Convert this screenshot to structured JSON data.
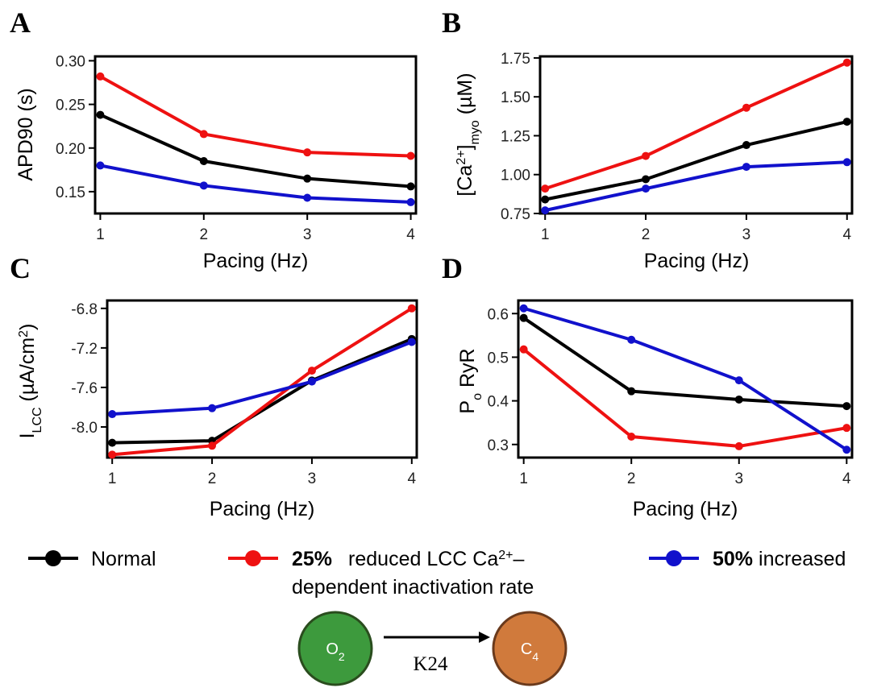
{
  "colors": {
    "Normal": "#000000",
    "Reduced": "#ee1111",
    "Increased": "#1111cc"
  },
  "chart_data": [
    {
      "type": "line",
      "panel": "A",
      "xlabel": "Pacing (Hz)",
      "ylabel": "APD90 (s)",
      "x": [
        1,
        2,
        3,
        4
      ],
      "xlim": [
        0.95,
        4.05
      ],
      "ylim": [
        0.125,
        0.305
      ],
      "xticks": [
        "1",
        "2",
        "3",
        "4"
      ],
      "yticks": [
        "0.15",
        "0.20",
        "0.25",
        "0.30"
      ],
      "yticks_values": [
        0.15,
        0.2,
        0.25,
        0.3
      ],
      "series": [
        {
          "name": "Normal",
          "values": [
            0.238,
            0.185,
            0.165,
            0.156
          ]
        },
        {
          "name": "Reduced",
          "values": [
            0.282,
            0.216,
            0.195,
            0.191
          ]
        },
        {
          "name": "Increased",
          "values": [
            0.18,
            0.157,
            0.143,
            0.138
          ]
        }
      ]
    },
    {
      "type": "line",
      "panel": "B",
      "xlabel": "Pacing (Hz)",
      "ylabel_parts": [
        "[Ca",
        "2+",
        "]",
        "myo",
        " (µM)"
      ],
      "x": [
        1,
        2,
        3,
        4
      ],
      "xlim": [
        0.95,
        4.05
      ],
      "ylim": [
        0.75,
        1.76
      ],
      "xticks": [
        "1",
        "2",
        "3",
        "4"
      ],
      "yticks": [
        "0.75",
        "1.00",
        "1.25",
        "1.50",
        "1.75"
      ],
      "yticks_values": [
        0.75,
        1.0,
        1.25,
        1.5,
        1.75
      ],
      "series": [
        {
          "name": "Normal",
          "values": [
            0.84,
            0.97,
            1.19,
            1.34
          ]
        },
        {
          "name": "Reduced",
          "values": [
            0.91,
            1.12,
            1.43,
            1.72
          ]
        },
        {
          "name": "Increased",
          "values": [
            0.77,
            0.91,
            1.05,
            1.08
          ]
        }
      ]
    },
    {
      "type": "line",
      "panel": "C",
      "xlabel": "Pacing (Hz)",
      "ylabel_parts": [
        "I",
        "LCC",
        " (µA/cm",
        "2",
        ")"
      ],
      "x": [
        1,
        2,
        3,
        4
      ],
      "xlim": [
        0.95,
        4.05
      ],
      "ylim": [
        -8.31,
        -6.72
      ],
      "xticks": [
        "1",
        "2",
        "3",
        "4"
      ],
      "yticks": [
        "-8.0",
        "-7.6",
        "-7.2",
        "-6.8"
      ],
      "yticks_values": [
        -8.0,
        -7.6,
        -7.2,
        -6.8
      ],
      "series": [
        {
          "name": "Normal",
          "values": [
            -8.16,
            -8.14,
            -7.53,
            -7.11
          ]
        },
        {
          "name": "Reduced",
          "values": [
            -8.28,
            -8.19,
            -7.43,
            -6.8
          ]
        },
        {
          "name": "Increased",
          "values": [
            -7.87,
            -7.81,
            -7.54,
            -7.14
          ]
        }
      ]
    },
    {
      "type": "line",
      "panel": "D",
      "xlabel": "Pacing (Hz)",
      "ylabel_parts": [
        "P",
        "o",
        " RyR"
      ],
      "x": [
        1,
        2,
        3,
        4
      ],
      "xlim": [
        0.95,
        4.05
      ],
      "ylim": [
        0.27,
        0.63
      ],
      "xticks": [
        "1",
        "2",
        "3",
        "4"
      ],
      "yticks": [
        "0.3",
        "0.4",
        "0.5",
        "0.6"
      ],
      "yticks_values": [
        0.3,
        0.4,
        0.5,
        0.6
      ],
      "series": [
        {
          "name": "Normal",
          "values": [
            0.59,
            0.422,
            0.403,
            0.388
          ]
        },
        {
          "name": "Reduced",
          "values": [
            0.518,
            0.318,
            0.296,
            0.338
          ]
        },
        {
          "name": "Increased",
          "values": [
            0.612,
            0.54,
            0.447,
            0.288
          ]
        }
      ]
    }
  ],
  "legend": {
    "normal": "Normal",
    "reduced_bold": "25%",
    "reduced_line1": "reduced LCC Ca",
    "reduced_sup": "2+",
    "reduced_dash": "–",
    "reduced_line2": "dependent inactivation rate",
    "increased_bold": "50%",
    "increased": "increased"
  },
  "diagram": {
    "state_from": "O",
    "state_from_sub": "2",
    "state_to": "C",
    "state_to_sub": "4",
    "rate": "K24",
    "state_from_color": "#3d9a3d",
    "state_to_color": "#d07a3c"
  }
}
